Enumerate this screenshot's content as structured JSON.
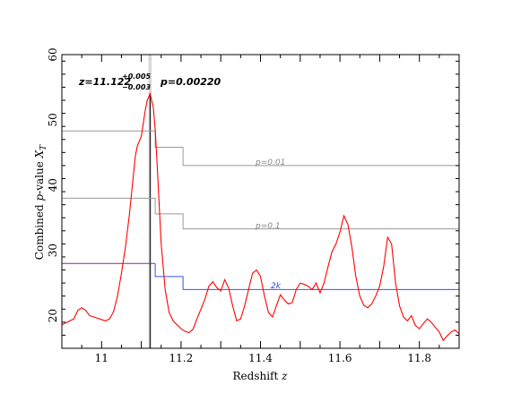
{
  "chart_data": {
    "type": "line",
    "xlabel": "Redshift z",
    "ylabel": "Combined p-value X_T",
    "xlim": [
      10.9,
      11.9
    ],
    "ylim": [
      15,
      60
    ],
    "x_ticks": [
      11,
      11.2,
      11.4,
      11.6,
      11.8
    ],
    "x_tick_labels": [
      "11",
      "11.2",
      "11.4",
      "11.6",
      "11.8"
    ],
    "y_ticks": [
      20,
      30,
      40,
      50,
      60
    ],
    "y_tick_labels": [
      "20",
      "30",
      "40",
      "50",
      "60"
    ],
    "grid": false,
    "series": [
      {
        "color": "#ff0000",
        "x": [
          10.9,
          10.92,
          10.93,
          10.94,
          10.95,
          10.96,
          10.97,
          10.98,
          10.99,
          11.0,
          11.01,
          11.02,
          11.03,
          11.04,
          11.05,
          11.06,
          11.07,
          11.08,
          11.085,
          11.09,
          11.1,
          11.105,
          11.11,
          11.115,
          11.122,
          11.13,
          11.135,
          11.14,
          11.145,
          11.15,
          11.16,
          11.17,
          11.18,
          11.19,
          11.2,
          11.21,
          11.22,
          11.23,
          11.24,
          11.25,
          11.26,
          11.27,
          11.28,
          11.29,
          11.3,
          11.31,
          11.32,
          11.33,
          11.34,
          11.35,
          11.36,
          11.37,
          11.38,
          11.39,
          11.4,
          11.41,
          11.42,
          11.43,
          11.44,
          11.45,
          11.46,
          11.47,
          11.48,
          11.49,
          11.5,
          11.51,
          11.52,
          11.53,
          11.54,
          11.55,
          11.56,
          11.57,
          11.58,
          11.59,
          11.6,
          11.61,
          11.62,
          11.63,
          11.64,
          11.65,
          11.66,
          11.67,
          11.68,
          11.69,
          11.7,
          11.71,
          11.72,
          11.73,
          11.74,
          11.75,
          11.76,
          11.77,
          11.78,
          11.79,
          11.8,
          11.81,
          11.82,
          11.83,
          11.84,
          11.85,
          11.86,
          11.87,
          11.88,
          11.89,
          11.9
        ],
        "y": [
          18.6,
          19.2,
          19.5,
          20.8,
          21.2,
          20.8,
          20.0,
          19.8,
          19.6,
          19.4,
          19.2,
          19.5,
          20.6,
          23.0,
          26.5,
          30.5,
          35.5,
          41.5,
          44.5,
          46.0,
          47.5,
          49.5,
          51.5,
          53.0,
          54.0,
          52.0,
          48.5,
          43.0,
          37.0,
          31.0,
          24.0,
          20.5,
          19.2,
          18.6,
          18.0,
          17.6,
          17.4,
          17.9,
          19.5,
          21.0,
          22.5,
          24.5,
          25.2,
          24.3,
          23.8,
          25.5,
          24.2,
          21.5,
          19.2,
          19.5,
          21.5,
          24.0,
          26.5,
          27.0,
          26.0,
          23.0,
          20.5,
          19.8,
          21.5,
          23.2,
          22.4,
          21.8,
          22.0,
          24.0,
          25.0,
          24.8,
          24.5,
          24.0,
          25.0,
          23.5,
          25.0,
          27.5,
          29.8,
          31.0,
          32.8,
          35.3,
          34.0,
          30.5,
          26.0,
          23.0,
          21.6,
          21.2,
          21.8,
          23.0,
          24.5,
          27.5,
          32.0,
          31.0,
          25.0,
          21.5,
          19.8,
          19.2,
          20.0,
          18.5,
          18.0,
          18.8,
          19.5,
          19.0,
          18.2,
          17.5,
          16.2,
          16.9,
          17.5,
          17.8,
          17.2
        ]
      },
      {
        "color": "#999999",
        "x": [
          10.9,
          11.135,
          11.135,
          11.205,
          11.205,
          11.9
        ],
        "y": [
          48.3,
          48.3,
          45.8,
          45.8,
          43.0,
          43.0
        ]
      },
      {
        "color": "#999999",
        "x": [
          10.9,
          11.135,
          11.135,
          11.205,
          11.205,
          11.9
        ],
        "y": [
          38.0,
          38.0,
          35.6,
          35.6,
          33.3,
          33.3
        ]
      },
      {
        "color": "#8a2a80",
        "x": [
          10.9,
          11.135
        ],
        "y": [
          28.0,
          28.0
        ]
      },
      {
        "color": "#3355ee",
        "x": [
          11.135,
          11.135,
          11.205,
          11.205,
          11.9
        ],
        "y": [
          28.0,
          26.0,
          26.0,
          24.0,
          24.0
        ]
      }
    ],
    "annotations": {
      "z_best": "z=11.122",
      "z_err_plus": "+0.005",
      "z_err_minus": "−0.003",
      "p_best": "p=0.00220",
      "p001": "p=0.01",
      "p01": "p=0.1",
      "twok": "2k"
    },
    "marker": {
      "x": 11.122,
      "band_width_z": 0.008
    }
  }
}
